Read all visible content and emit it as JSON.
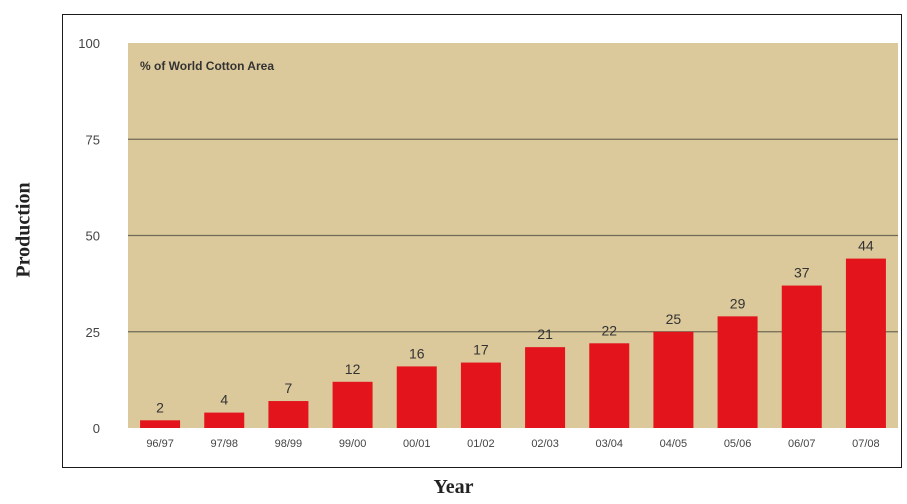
{
  "chart_data": {
    "type": "bar",
    "title": "% of World Cotton Area",
    "xlabel": "Year",
    "ylabel": "Production",
    "ylim": [
      0,
      100
    ],
    "yticks": [
      "0",
      "25",
      "50",
      "75",
      "100"
    ],
    "grid": true,
    "categories": [
      "96/97",
      "97/98",
      "98/99",
      "99/00",
      "00/01",
      "01/02",
      "02/03",
      "03/04",
      "04/05",
      "05/06",
      "06/07",
      "07/08"
    ],
    "values": [
      2,
      4,
      7,
      12,
      16,
      17,
      21,
      22,
      25,
      29,
      37,
      44
    ],
    "colors": {
      "bar": "#e3141b",
      "plot_bg": "#dcc99b",
      "grid": "#6f6a55"
    }
  }
}
